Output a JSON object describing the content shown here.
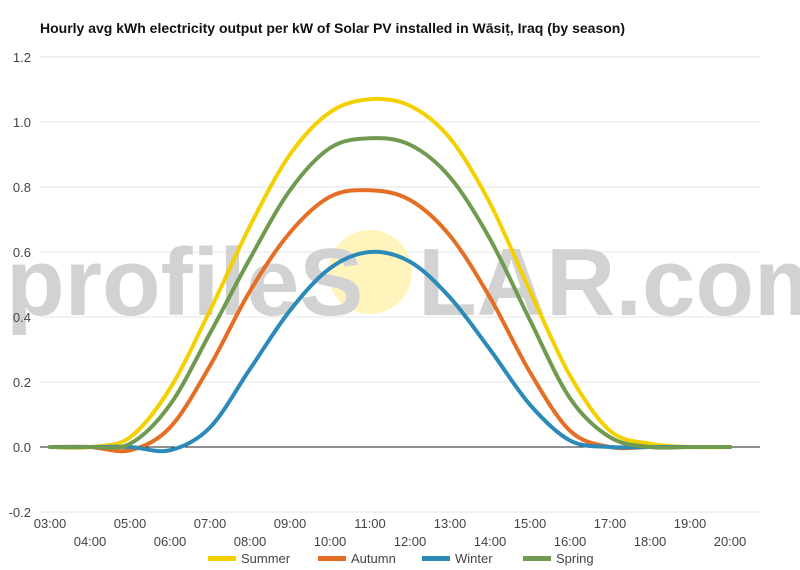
{
  "chart_data": {
    "type": "line",
    "title": "Hourly avg kWh electricity output per kW of Solar PV installed in Wāsiṭ, Iraq (by season)",
    "watermark": {
      "left": "profileS",
      "right": "LAR.com"
    },
    "xlabel": "",
    "ylabel": "",
    "ylim": [
      -0.2,
      1.2
    ],
    "yticks": [
      "-0.2",
      "0.0",
      "0.2",
      "0.4",
      "0.6",
      "0.8",
      "1.0",
      "1.2"
    ],
    "xticks_upper": [
      "03:00",
      "05:00",
      "07:00",
      "09:00",
      "11:00",
      "13:00",
      "15:00",
      "17:00",
      "19:00"
    ],
    "xticks_lower": [
      "04:00",
      "06:00",
      "08:00",
      "10:00",
      "12:00",
      "14:00",
      "16:00",
      "18:00",
      "20:00"
    ],
    "x": [
      3,
      4,
      5,
      6,
      7,
      8,
      9,
      10,
      11,
      12,
      13,
      14,
      15,
      16,
      17,
      18,
      19,
      20
    ],
    "legend_position": "bottom",
    "series": [
      {
        "name": "Summer",
        "color": "#f5d000",
        "values": [
          0.0,
          0.0,
          0.03,
          0.18,
          0.42,
          0.68,
          0.9,
          1.03,
          1.07,
          1.05,
          0.95,
          0.75,
          0.48,
          0.22,
          0.05,
          0.01,
          0.0,
          0.0
        ]
      },
      {
        "name": "Autumn",
        "color": "#e36e24",
        "values": [
          0.0,
          0.0,
          -0.01,
          0.06,
          0.25,
          0.48,
          0.66,
          0.77,
          0.79,
          0.76,
          0.65,
          0.46,
          0.23,
          0.05,
          0.0,
          0.0,
          0.0,
          0.0
        ]
      },
      {
        "name": "Winter",
        "color": "#2b8ab8",
        "values": [
          0.0,
          0.0,
          0.0,
          -0.01,
          0.06,
          0.24,
          0.42,
          0.55,
          0.6,
          0.57,
          0.46,
          0.3,
          0.13,
          0.02,
          0.0,
          0.0,
          0.0,
          0.0
        ]
      },
      {
        "name": "Spring",
        "color": "#6f9a50",
        "values": [
          0.0,
          0.0,
          0.01,
          0.13,
          0.35,
          0.58,
          0.79,
          0.92,
          0.95,
          0.93,
          0.83,
          0.64,
          0.39,
          0.15,
          0.03,
          0.0,
          0.0,
          0.0
        ]
      }
    ]
  }
}
